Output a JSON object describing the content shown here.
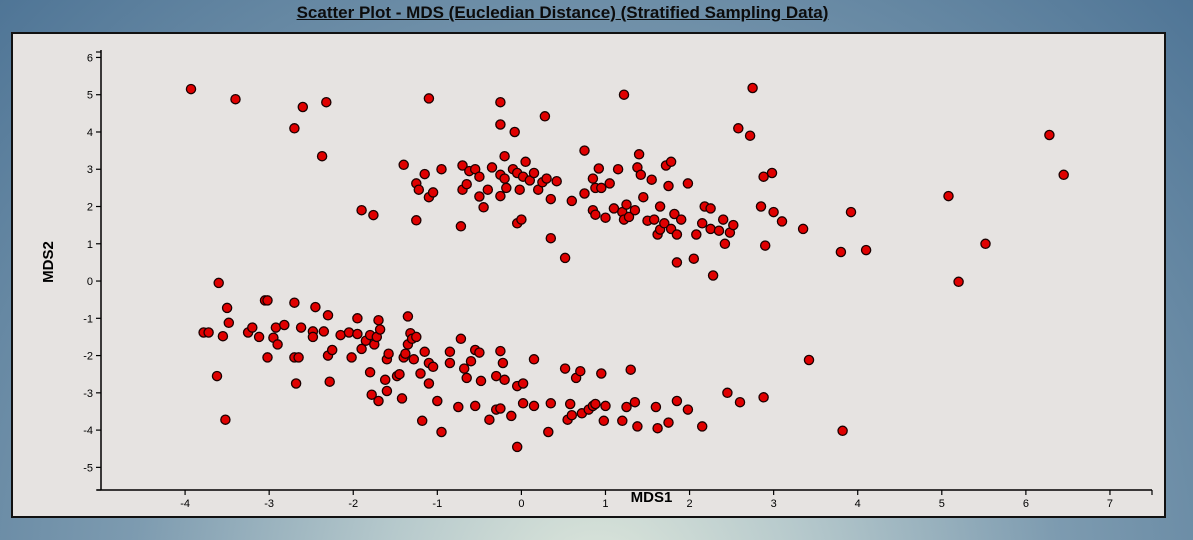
{
  "chart_data": {
    "type": "scatter",
    "title": "Scatter Plot - MDS (Eucledian Distance) (Stratified Sampling Data)",
    "xlabel": "MDS1",
    "ylabel": "MDS2",
    "xlim": [
      -5,
      7.5
    ],
    "ylim": [
      -5.5,
      6.2
    ],
    "xticks": [
      -4,
      -3,
      -2,
      -1,
      0,
      1,
      2,
      3,
      4,
      5,
      6,
      7
    ],
    "yticks": [
      -5,
      -4,
      -3,
      -2,
      -1,
      0,
      1,
      2,
      3,
      4,
      5,
      6
    ],
    "grid": false,
    "marker_color": "#e00000",
    "marker_edge": "#1a0000",
    "points": [
      [
        -3.93,
        5.15
      ],
      [
        -3.4,
        4.88
      ],
      [
        -2.6,
        4.67
      ],
      [
        -2.32,
        4.8
      ],
      [
        -2.7,
        4.1
      ],
      [
        -2.37,
        3.35
      ],
      [
        -1.9,
        1.9
      ],
      [
        -1.76,
        1.77
      ],
      [
        -1.1,
        4.9
      ],
      [
        -1.4,
        3.12
      ],
      [
        -1.25,
        2.62
      ],
      [
        -1.22,
        2.45
      ],
      [
        -1.15,
        2.87
      ],
      [
        -1.1,
        2.25
      ],
      [
        -1.05,
        2.38
      ],
      [
        -0.95,
        3.0
      ],
      [
        -1.25,
        1.63
      ],
      [
        -0.7,
        3.1
      ],
      [
        -0.7,
        2.45
      ],
      [
        -0.65,
        2.6
      ],
      [
        -0.62,
        2.95
      ],
      [
        -0.55,
        3.0
      ],
      [
        -0.5,
        2.8
      ],
      [
        -0.5,
        2.27
      ],
      [
        -0.45,
        1.98
      ],
      [
        -0.4,
        2.45
      ],
      [
        -0.72,
        1.47
      ],
      [
        -0.35,
        3.05
      ],
      [
        -0.25,
        2.85
      ],
      [
        -0.25,
        2.28
      ],
      [
        -0.2,
        2.75
      ],
      [
        -0.18,
        2.5
      ],
      [
        -0.25,
        4.8
      ],
      [
        -0.25,
        4.2
      ],
      [
        -0.2,
        3.35
      ],
      [
        -0.1,
        3.0
      ],
      [
        -0.08,
        4.0
      ],
      [
        -0.05,
        2.9
      ],
      [
        -0.02,
        2.45
      ],
      [
        0.02,
        2.8
      ],
      [
        0.05,
        3.2
      ],
      [
        -0.05,
        1.55
      ],
      [
        0.0,
        1.65
      ],
      [
        0.1,
        2.7
      ],
      [
        0.15,
        2.9
      ],
      [
        0.2,
        2.45
      ],
      [
        0.25,
        2.65
      ],
      [
        0.3,
        2.75
      ],
      [
        0.35,
        2.2
      ],
      [
        0.42,
        2.68
      ],
      [
        0.28,
        4.42
      ],
      [
        0.35,
        1.15
      ],
      [
        0.52,
        0.62
      ],
      [
        0.6,
        2.15
      ],
      [
        0.75,
        3.5
      ],
      [
        0.75,
        2.35
      ],
      [
        0.85,
        2.75
      ],
      [
        0.88,
        2.5
      ],
      [
        0.92,
        3.02
      ],
      [
        0.85,
        1.9
      ],
      [
        0.88,
        1.78
      ],
      [
        0.95,
        2.5
      ],
      [
        1.0,
        1.7
      ],
      [
        1.05,
        2.62
      ],
      [
        1.1,
        1.95
      ],
      [
        1.15,
        3.0
      ],
      [
        1.2,
        1.85
      ],
      [
        1.22,
        1.65
      ],
      [
        1.25,
        2.05
      ],
      [
        1.28,
        1.72
      ],
      [
        1.22,
        5.0
      ],
      [
        1.35,
        1.9
      ],
      [
        1.38,
        3.05
      ],
      [
        1.4,
        3.4
      ],
      [
        1.42,
        2.85
      ],
      [
        1.45,
        2.25
      ],
      [
        1.5,
        1.62
      ],
      [
        1.55,
        2.72
      ],
      [
        1.58,
        1.65
      ],
      [
        1.62,
        1.25
      ],
      [
        1.65,
        1.38
      ],
      [
        1.65,
        2.0
      ],
      [
        1.7,
        1.55
      ],
      [
        1.72,
        3.1
      ],
      [
        1.75,
        2.55
      ],
      [
        1.78,
        3.2
      ],
      [
        1.78,
        1.4
      ],
      [
        1.82,
        1.8
      ],
      [
        1.85,
        1.25
      ],
      [
        1.9,
        1.65
      ],
      [
        1.85,
        0.5
      ],
      [
        1.98,
        2.62
      ],
      [
        2.05,
        0.6
      ],
      [
        2.08,
        1.25
      ],
      [
        2.15,
        1.55
      ],
      [
        2.18,
        2.0
      ],
      [
        2.25,
        1.95
      ],
      [
        2.25,
        1.4
      ],
      [
        2.28,
        0.15
      ],
      [
        2.35,
        1.35
      ],
      [
        2.4,
        1.65
      ],
      [
        2.42,
        1.0
      ],
      [
        2.48,
        1.3
      ],
      [
        2.52,
        1.5
      ],
      [
        2.58,
        4.1
      ],
      [
        2.72,
        3.9
      ],
      [
        2.75,
        5.18
      ],
      [
        2.85,
        2.0
      ],
      [
        2.88,
        2.8
      ],
      [
        2.9,
        0.95
      ],
      [
        2.98,
        2.9
      ],
      [
        3.0,
        1.85
      ],
      [
        3.1,
        1.6
      ],
      [
        3.35,
        1.4
      ],
      [
        3.8,
        0.78
      ],
      [
        3.92,
        1.85
      ],
      [
        4.1,
        0.83
      ],
      [
        5.08,
        2.28
      ],
      [
        5.52,
        1.0
      ],
      [
        5.2,
        -0.02
      ],
      [
        6.28,
        3.92
      ],
      [
        6.45,
        2.85
      ],
      [
        3.42,
        -2.12
      ],
      [
        3.82,
        -4.02
      ],
      [
        2.88,
        -3.12
      ],
      [
        2.6,
        -3.25
      ],
      [
        2.45,
        -3.0
      ],
      [
        -3.6,
        -0.05
      ],
      [
        -3.78,
        -1.38
      ],
      [
        -3.72,
        -1.38
      ],
      [
        -3.55,
        -1.48
      ],
      [
        -3.5,
        -0.72
      ],
      [
        -3.48,
        -1.12
      ],
      [
        -3.62,
        -2.55
      ],
      [
        -3.52,
        -3.72
      ],
      [
        -3.25,
        -1.38
      ],
      [
        -3.2,
        -1.25
      ],
      [
        -3.12,
        -1.5
      ],
      [
        -3.05,
        -0.52
      ],
      [
        -3.02,
        -0.52
      ],
      [
        -3.02,
        -2.05
      ],
      [
        -2.95,
        -1.52
      ],
      [
        -2.92,
        -1.25
      ],
      [
        -2.9,
        -1.7
      ],
      [
        -2.82,
        -1.18
      ],
      [
        -2.7,
        -0.58
      ],
      [
        -2.7,
        -2.05
      ],
      [
        -2.68,
        -2.75
      ],
      [
        -2.65,
        -2.05
      ],
      [
        -2.62,
        -1.25
      ],
      [
        -2.48,
        -1.35
      ],
      [
        -2.48,
        -1.5
      ],
      [
        -2.45,
        -0.7
      ],
      [
        -2.35,
        -1.35
      ],
      [
        -2.3,
        -0.92
      ],
      [
        -2.3,
        -2.0
      ],
      [
        -2.28,
        -2.7
      ],
      [
        -2.25,
        -1.85
      ],
      [
        -2.15,
        -1.45
      ],
      [
        -2.05,
        -1.38
      ],
      [
        -2.02,
        -2.05
      ],
      [
        -1.95,
        -1.0
      ],
      [
        -1.95,
        -1.42
      ],
      [
        -1.9,
        -1.82
      ],
      [
        -1.85,
        -1.6
      ],
      [
        -1.8,
        -1.45
      ],
      [
        -1.8,
        -2.45
      ],
      [
        -1.78,
        -3.05
      ],
      [
        -1.75,
        -1.7
      ],
      [
        -1.72,
        -1.5
      ],
      [
        -1.7,
        -1.05
      ],
      [
        -1.68,
        -1.3
      ],
      [
        -1.7,
        -3.22
      ],
      [
        -1.62,
        -2.65
      ],
      [
        -1.6,
        -2.1
      ],
      [
        -1.6,
        -2.95
      ],
      [
        -1.58,
        -1.95
      ],
      [
        -1.48,
        -2.55
      ],
      [
        -1.45,
        -2.5
      ],
      [
        -1.42,
        -3.15
      ],
      [
        -1.4,
        -2.05
      ],
      [
        -1.38,
        -1.95
      ],
      [
        -1.35,
        -0.95
      ],
      [
        -1.35,
        -1.7
      ],
      [
        -1.32,
        -1.4
      ],
      [
        -1.3,
        -1.55
      ],
      [
        -1.28,
        -2.1
      ],
      [
        -1.25,
        -1.5
      ],
      [
        -1.2,
        -2.48
      ],
      [
        -1.18,
        -3.75
      ],
      [
        -1.15,
        -1.9
      ],
      [
        -1.1,
        -2.2
      ],
      [
        -1.1,
        -2.75
      ],
      [
        -1.05,
        -2.3
      ],
      [
        -1.0,
        -3.22
      ],
      [
        -0.95,
        -4.05
      ],
      [
        -0.85,
        -1.9
      ],
      [
        -0.85,
        -2.2
      ],
      [
        -0.75,
        -3.38
      ],
      [
        -0.72,
        -1.55
      ],
      [
        -0.68,
        -2.35
      ],
      [
        -0.65,
        -2.6
      ],
      [
        -0.6,
        -2.15
      ],
      [
        -0.55,
        -3.35
      ],
      [
        -0.55,
        -1.85
      ],
      [
        -0.5,
        -1.92
      ],
      [
        -0.48,
        -2.68
      ],
      [
        -0.38,
        -3.72
      ],
      [
        -0.3,
        -2.55
      ],
      [
        -0.3,
        -3.45
      ],
      [
        -0.25,
        -1.88
      ],
      [
        -0.25,
        -3.42
      ],
      [
        -0.22,
        -2.2
      ],
      [
        -0.2,
        -2.65
      ],
      [
        -0.12,
        -3.62
      ],
      [
        -0.05,
        -4.45
      ],
      [
        -0.05,
        -2.82
      ],
      [
        0.02,
        -2.75
      ],
      [
        0.02,
        -3.28
      ],
      [
        0.15,
        -2.1
      ],
      [
        0.15,
        -3.35
      ],
      [
        0.32,
        -4.05
      ],
      [
        0.35,
        -3.28
      ],
      [
        0.52,
        -2.35
      ],
      [
        0.55,
        -3.72
      ],
      [
        0.58,
        -3.3
      ],
      [
        0.6,
        -3.6
      ],
      [
        0.65,
        -2.6
      ],
      [
        0.7,
        -2.42
      ],
      [
        0.72,
        -3.55
      ],
      [
        0.8,
        -3.45
      ],
      [
        0.85,
        -3.35
      ],
      [
        0.88,
        -3.3
      ],
      [
        0.95,
        -2.48
      ],
      [
        1.0,
        -3.35
      ],
      [
        0.98,
        -3.75
      ],
      [
        1.2,
        -3.75
      ],
      [
        1.25,
        -3.38
      ],
      [
        1.3,
        -2.38
      ],
      [
        1.35,
        -3.25
      ],
      [
        1.38,
        -3.9
      ],
      [
        1.6,
        -3.38
      ],
      [
        1.62,
        -3.95
      ],
      [
        1.75,
        -3.8
      ],
      [
        1.85,
        -3.22
      ],
      [
        1.98,
        -3.45
      ],
      [
        2.15,
        -3.9
      ]
    ]
  }
}
